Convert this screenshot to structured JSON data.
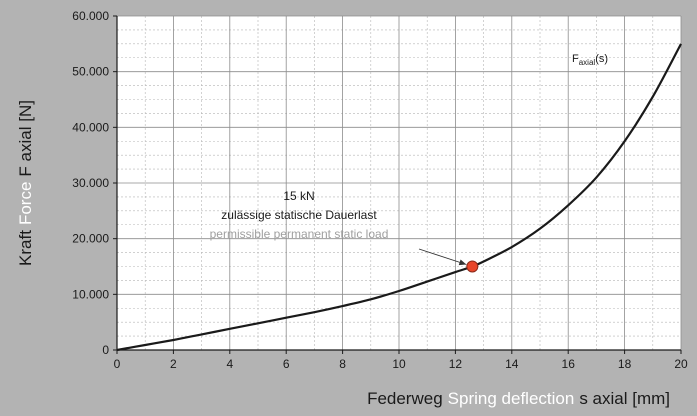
{
  "chart_data": {
    "type": "line",
    "x": [
      0,
      1,
      2,
      3,
      4,
      5,
      6,
      7,
      8,
      9,
      10,
      11,
      12,
      12.6,
      13,
      14,
      15,
      16,
      17,
      18,
      19,
      20
    ],
    "series": [
      {
        "name": "F axial(s)",
        "values": [
          0,
          900,
          1800,
          2800,
          3800,
          4800,
          5800,
          6800,
          7900,
          9100,
          10600,
          12300,
          14000,
          15000,
          15900,
          18500,
          21800,
          26000,
          31000,
          37500,
          45500,
          55000
        ]
      }
    ],
    "xlim": [
      0,
      20
    ],
    "ylim": [
      0,
      60000
    ],
    "xticks": [
      0,
      2,
      4,
      6,
      8,
      10,
      12,
      14,
      16,
      18,
      20
    ],
    "xtick_labels": [
      "0",
      "2",
      "4",
      "6",
      "8",
      "10",
      "12",
      "14",
      "16",
      "18",
      "20"
    ],
    "yticks": [
      0,
      10000,
      20000,
      30000,
      40000,
      50000,
      60000
    ],
    "ytick_labels": [
      "0",
      "10.000",
      "20.000",
      "30.000",
      "40.000",
      "50.000",
      "60.000"
    ],
    "grid": true,
    "xlabel": {
      "german": "Federweg",
      "english": "Spring deflection",
      "symbol": "s axial [mm]"
    },
    "ylabel": {
      "german": "Kraft",
      "english": "Force",
      "symbol": "F axial [N]"
    },
    "legend_label": {
      "base": "F",
      "subscript": "axial",
      "suffix": "(s)"
    },
    "marker": {
      "x": 12.6,
      "y": 15000,
      "color": "#e8452a"
    },
    "annotation": {
      "line1": "15 kN",
      "line2": "zulässige statische Dauerlast",
      "line3": "permissible permanent static load"
    },
    "colors": {
      "background": "#b3b3b3",
      "plot": "#ffffff",
      "curve": "#1a1a1a",
      "english_text": "#ffffff",
      "english_annotation": "#a0a0a0"
    }
  }
}
